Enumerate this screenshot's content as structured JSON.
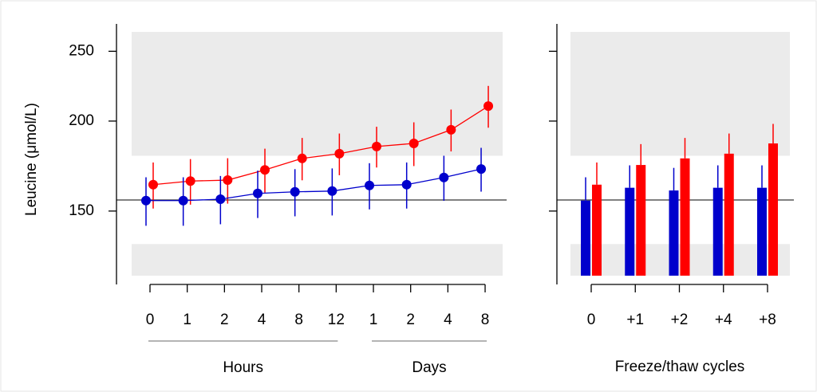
{
  "chart_data": [
    {
      "type": "line",
      "ylabel": "Leucine (μmol/L)",
      "log_y": true,
      "categories": [
        "0",
        "1",
        "2",
        "4",
        "8",
        "12",
        "1",
        "2",
        "4",
        "8"
      ],
      "groups": [
        {
          "label": "Hours",
          "start": 0,
          "end": 5
        },
        {
          "label": "Days",
          "start": 6,
          "end": 9
        }
      ],
      "ylim": [
        122,
        266
      ],
      "yticks": [
        150,
        200,
        250
      ],
      "show_ytick_labels": true,
      "shaded_ranges": [
        [
          179,
          266
        ],
        [
          122,
          135
        ]
      ],
      "shade_color": "#ebebeb",
      "reference_line": 155.4,
      "series": [
        {
          "color": "#ff0000",
          "values": [
            163.2,
            165.1,
            165.6,
            171.1,
            177.5,
            180.2,
            184.4,
            186.2,
            194.5,
            209.8
          ],
          "errors": [
            12,
            12,
            12,
            12,
            12,
            12,
            12,
            13,
            13,
            14
          ]
        },
        {
          "color": "#0000cc",
          "values": [
            155.1,
            155.1,
            155.8,
            158.7,
            159.5,
            159.9,
            162.8,
            163.2,
            167.0,
            171.6
          ],
          "errors": [
            12,
            12,
            12,
            12,
            12,
            12,
            12,
            12,
            12,
            12
          ]
        }
      ]
    },
    {
      "type": "bar",
      "xlabel": "Freeze/thaw cycles",
      "log_y": true,
      "categories": [
        "0",
        "+1",
        "+2",
        "+4",
        "+8"
      ],
      "ylim": [
        122,
        266
      ],
      "yticks": [
        150,
        200,
        250
      ],
      "show_ytick_labels": false,
      "shaded_ranges": [
        [
          179,
          266
        ],
        [
          122,
          135
        ]
      ],
      "shade_color": "#ebebeb",
      "reference_line": 155.4,
      "series": [
        {
          "color": "#0000cc",
          "values": [
            155.1,
            161.6,
            160.2,
            161.6,
            161.6
          ],
          "errors": [
            12,
            12,
            12,
            12,
            12
          ]
        },
        {
          "color": "#ff0000",
          "values": [
            163.2,
            173.8,
            177.5,
            180.2,
            186.2
          ],
          "errors": [
            12,
            12,
            12,
            12,
            12
          ]
        }
      ]
    }
  ]
}
